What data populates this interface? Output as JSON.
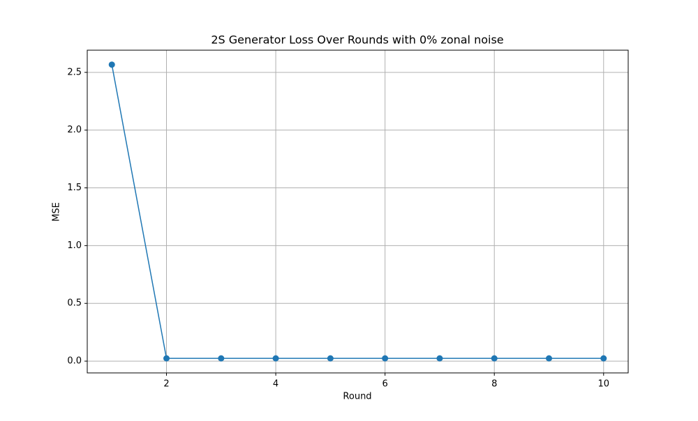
{
  "chart_data": {
    "type": "line",
    "title": "2S Generator Loss Over Rounds with 0% zonal noise",
    "x_label": "Round",
    "y_label": "MSE",
    "x": [
      1,
      2,
      3,
      4,
      5,
      6,
      7,
      8,
      9,
      10
    ],
    "series": [
      {
        "name": "MSE",
        "color": "#1f77b4",
        "values": [
          2.567,
          0.024,
          0.024,
          0.024,
          0.024,
          0.024,
          0.024,
          0.024,
          0.024,
          0.024
        ]
      }
    ],
    "xlim": [
      0.55,
      10.45
    ],
    "ylim": [
      -0.102,
      2.692
    ],
    "xticks": [
      2,
      4,
      6,
      8,
      10
    ],
    "yticks": [
      {
        "value": 0,
        "label": "0.0"
      },
      0.5,
      {
        "value": 1,
        "label": "1.0"
      },
      1.5,
      {
        "value": 2,
        "label": "2.0"
      },
      2.5
    ],
    "grid": true
  }
}
